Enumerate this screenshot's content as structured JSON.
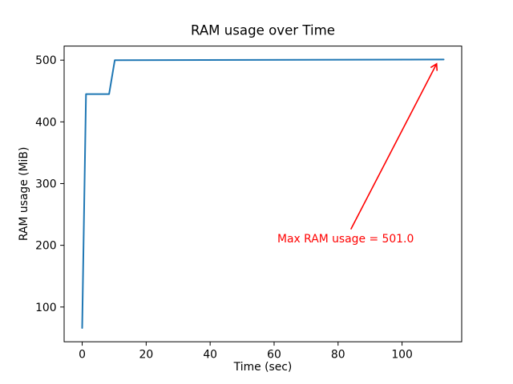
{
  "figure": {
    "background": "#ffffff"
  },
  "chart_data": {
    "type": "line",
    "title": "RAM usage over Time",
    "xlabel": "Time (sec)",
    "ylabel": "RAM usage (MiB)",
    "xlim": [
      -5.65,
      118.65
    ],
    "ylim": [
      43.7,
      522.8
    ],
    "xticks": [
      0,
      20,
      40,
      60,
      80,
      100
    ],
    "yticks": [
      100,
      200,
      300,
      400,
      500
    ],
    "grid": false,
    "legend": false,
    "axis_color": "#000000",
    "series": [
      {
        "name": "ram-usage",
        "color": "#1f77b4",
        "line_width": 2,
        "x": [
          0,
          1.2,
          8.4,
          10.2,
          113
        ],
        "y": [
          66,
          445,
          445,
          500,
          501
        ]
      }
    ],
    "annotation": {
      "text": "Max RAM usage = 501.0",
      "color": "#ff0000",
      "text_xy": [
        61,
        205
      ],
      "arrow_start_xy": [
        84,
        226
      ],
      "arrow_end_xy": [
        110.8,
        494
      ]
    }
  }
}
